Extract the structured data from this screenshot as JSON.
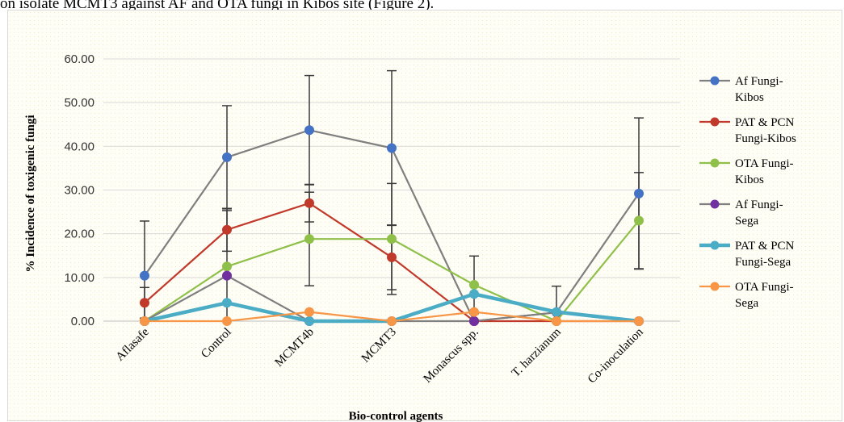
{
  "caption": "on isolate MCMT3 against AF and OTA fungi in Kibos site (Figure 2).",
  "chart_data": {
    "type": "line",
    "title": "",
    "xlabel": "Bio-control agents",
    "ylabel": "% Incidence of toxigenic fungi",
    "ylim": [
      0,
      60
    ],
    "yticks": [
      "0.00",
      "10.00",
      "20.00",
      "30.00",
      "40.00",
      "50.00",
      "60.00"
    ],
    "categories": [
      "Aflasafe",
      "Control",
      "MCMT4b",
      "MCMT3",
      "Monascus spp.",
      "T. harzianum",
      "Co-inoculation"
    ],
    "legend_position": "right",
    "series": [
      {
        "name_lines": [
          "Af Fungi-",
          "Kibos"
        ],
        "color": "#4472c4",
        "line_color": "#7f7f7f",
        "line_width": 2.2,
        "values": [
          10.4,
          37.5,
          43.7,
          39.6,
          0,
          2,
          29.2
        ],
        "errors": [
          12.5,
          11.8,
          12.5,
          17.7,
          null,
          null,
          17.3
        ]
      },
      {
        "name_lines": [
          "PAT & PCN",
          "Fungi-Kibos"
        ],
        "color": "#c0392b",
        "line_color": "#c0392b",
        "line_width": 2.2,
        "values": [
          4.2,
          20.9,
          27,
          14.6,
          0,
          0,
          0
        ],
        "errors": [
          3.5,
          4.9,
          4.3,
          7.4,
          null,
          null,
          null
        ]
      },
      {
        "name_lines": [
          "OTA Fungi-",
          "Kibos"
        ],
        "color": "#8fc04a",
        "line_color": "#8fc04a",
        "line_width": 2.2,
        "values": [
          0,
          12.5,
          18.8,
          18.8,
          8.3,
          0,
          23
        ],
        "errors": [
          null,
          12.8,
          10.7,
          12.7,
          6.6,
          null,
          11
        ]
      },
      {
        "name_lines": [
          "Af Fungi-",
          "Sega"
        ],
        "color": "#7030a0",
        "line_color": "#7f7f7f",
        "line_width": 2.2,
        "values": [
          0,
          10.4,
          0,
          0,
          0,
          2,
          0
        ],
        "errors": [
          null,
          null,
          null,
          null,
          null,
          6,
          null
        ]
      },
      {
        "name_lines": [
          "PAT & PCN",
          "Fungi-Sega"
        ],
        "color": "#4bacc6",
        "line_color": "#4bacc6",
        "line_width": 4.5,
        "values": [
          0,
          4.2,
          0,
          0,
          6.2,
          2.1,
          0
        ],
        "errors": [
          null,
          null,
          null,
          null,
          null,
          null,
          null
        ]
      },
      {
        "name_lines": [
          "OTA Fungi-",
          "Sega"
        ],
        "color": "#f79646",
        "line_color": "#f79646",
        "line_width": 2.2,
        "values": [
          0,
          0,
          2.1,
          0,
          2.1,
          0,
          0
        ],
        "errors": [
          null,
          null,
          null,
          null,
          null,
          null,
          null
        ]
      }
    ]
  }
}
